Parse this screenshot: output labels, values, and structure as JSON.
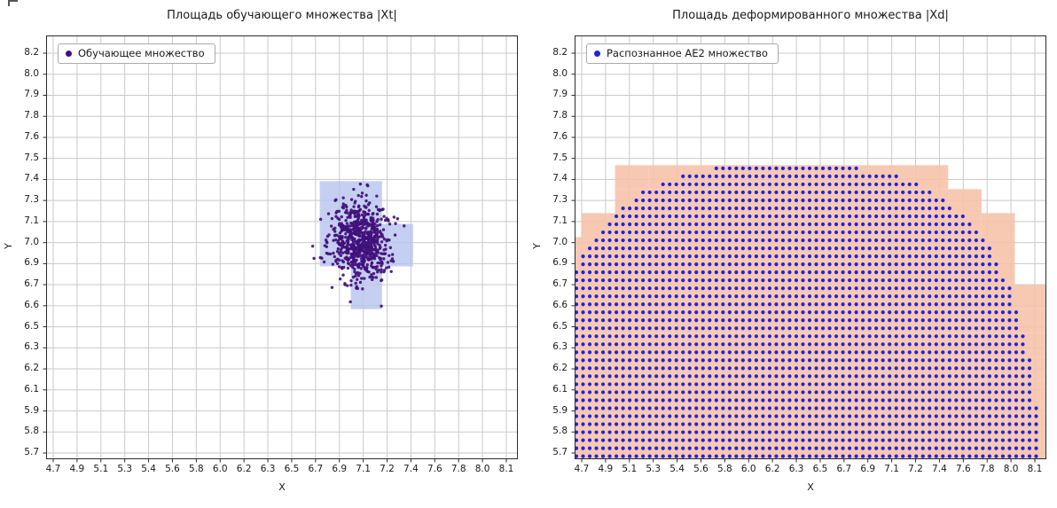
{
  "style": {
    "background": "#ffffff",
    "grid_color": "#cacaca",
    "frame_color": "#2b2b2b",
    "tick_color": "#2b2b2b"
  },
  "chart_data": [
    {
      "type": "scatter",
      "title": "Площадь обучающего множества |Xt|",
      "xlabel": "X",
      "ylabel": "Y",
      "grid": true,
      "legend": {
        "label": "Обучающее множество",
        "color": "#41107c",
        "position": "upper left",
        "marker": "dot"
      },
      "x_ticks": {
        "v0": 4.7,
        "v1": 8.1,
        "labels": [
          "4.7",
          "4.9",
          "5.1",
          "5.3",
          "5.4",
          "5.6",
          "5.8",
          "6.0",
          "6.2",
          "6.3",
          "6.5",
          "6.7",
          "6.9",
          "7.1",
          "7.2",
          "7.4",
          "7.6",
          "7.8",
          "8.0",
          "8.1"
        ]
      },
      "y_ticks": {
        "v0": 5.7,
        "v1": 8.2,
        "labels": [
          "5.7",
          "5.8",
          "5.9",
          "6.1",
          "6.2",
          "6.3",
          "6.5",
          "6.6",
          "6.7",
          "6.9",
          "7.0",
          "7.1",
          "7.3",
          "7.4",
          "7.5",
          "7.6",
          "7.8",
          "7.9",
          "8.0",
          "8.2"
        ]
      },
      "cells": {
        "color": "#b7c3ee",
        "opacity": 0.8,
        "rects": [
          [
            6.7,
            7.133,
            0.467,
            0.267
          ],
          [
            6.7,
            6.867,
            0.7,
            0.266
          ],
          [
            6.933,
            6.6,
            0.234,
            0.267
          ]
        ]
      },
      "cluster": {
        "center": [
          7.0,
          7.02
        ],
        "std": [
          0.105,
          0.125
        ],
        "n": 700,
        "color": "#41107c",
        "dot_radius": 1.7
      }
    },
    {
      "type": "scatter",
      "title": "Площадь деформированного множества |Xd|",
      "xlabel": "X",
      "ylabel": "Y",
      "grid": true,
      "legend": {
        "label": "Распознанное AE2 множество",
        "color": "#2222dd",
        "position": "upper left",
        "marker": "dot"
      },
      "x_ticks": {
        "v0": 4.7,
        "v1": 8.1,
        "labels": [
          "4.7",
          "4.9",
          "5.1",
          "5.3",
          "5.4",
          "5.6",
          "5.8",
          "6.0",
          "6.2",
          "6.3",
          "6.5",
          "6.7",
          "6.9",
          "7.1",
          "7.2",
          "7.4",
          "7.6",
          "7.8",
          "8.0",
          "8.1"
        ]
      },
      "y_ticks": {
        "v0": 5.7,
        "v1": 8.2,
        "labels": [
          "5.7",
          "5.8",
          "5.9",
          "6.1",
          "6.2",
          "6.3",
          "6.5",
          "6.6",
          "6.7",
          "6.9",
          "7.0",
          "7.1",
          "7.3",
          "7.4",
          "7.5",
          "7.6",
          "7.8",
          "7.9",
          "8.0",
          "8.2"
        ]
      },
      "cells": {
        "color": "#f6c3ab",
        "opacity": 0.9,
        "grid_origin": [
          4.45,
          5.55
        ],
        "cell_w": 0.25,
        "cell_h": 0.15
      },
      "dome": {
        "shape": "superellipse",
        "center": [
          6.25,
          5.0
        ],
        "rx": 1.9,
        "ry": 2.5,
        "exponent": 3,
        "dot_spacing": 0.05,
        "dot_color": "#2222dd",
        "dot_radius": 2.1,
        "apex": [
          6.25,
          7.5
        ]
      }
    }
  ]
}
